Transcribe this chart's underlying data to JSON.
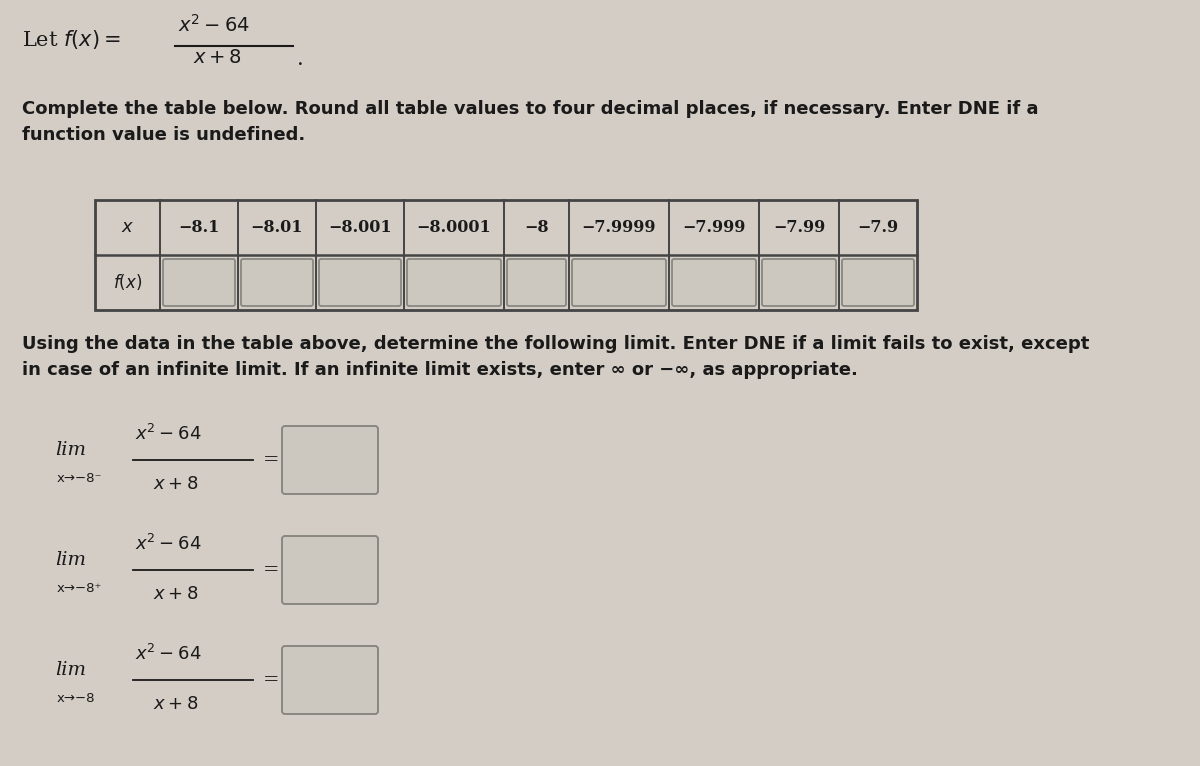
{
  "background_color": "#d4cdc5",
  "text_color": "#1a1a1a",
  "box_fill": "#ccc8c0",
  "box_edge": "#888880",
  "table_border": "#444444",
  "x_values": [
    "x",
    "−8.1",
    "−8.01",
    "−8.001",
    "−8.0001",
    "−8",
    "−7.9999",
    "−7.999",
    "−7.99",
    "−7.9"
  ],
  "instruction1": "Complete the table below. Round all table values to four decimal places, if necessary. Enter DNE if a\nfunction value is undefined.",
  "instruction2": "Using the data in the table above, determine the following limit. Enter DNE if a limit fails to exist, except\nin case of an infinite limit. If an infinite limit exists, enter ∞ or −∞, as appropriate."
}
